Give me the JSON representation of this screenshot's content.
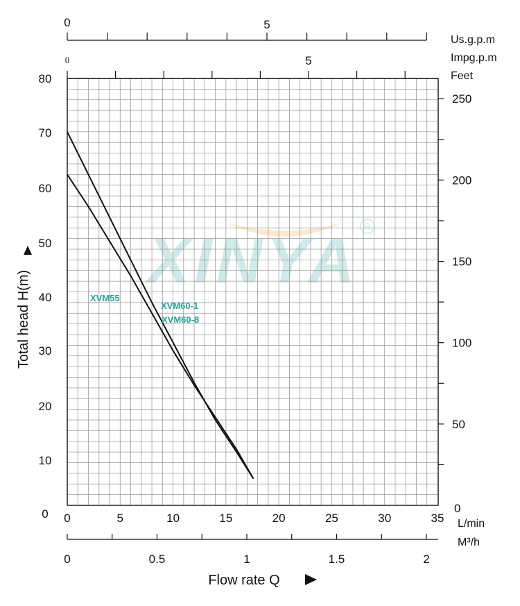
{
  "chart_data": {
    "type": "line",
    "title": "",
    "xlabel": "Flow rate Q",
    "ylabel": "Total head H(m)",
    "x_unit": "L/min",
    "xlim": [
      0,
      35
    ],
    "ylim": [
      0,
      80
    ],
    "grid": true,
    "x_ticks": [
      "0",
      "5",
      "10",
      "15",
      "20",
      "25",
      "30",
      "35"
    ],
    "y_ticks": [
      "0",
      "10",
      "20",
      "30",
      "40",
      "50",
      "60",
      "70",
      "80"
    ],
    "secondary_axes": {
      "feet": {
        "unit": "Feet",
        "ticks": [
          "0",
          "50",
          "100",
          "150",
          "200",
          "250"
        ]
      },
      "usgpm": {
        "unit": "Us.g.p.m",
        "ticks": [
          "0",
          "5"
        ]
      },
      "impgpm": {
        "unit": "Impg.p.m",
        "ticks": [
          "0",
          "5"
        ]
      },
      "m3h": {
        "unit": "M³/h",
        "ticks": [
          "0",
          "0.5",
          "1",
          "1.5",
          "2"
        ]
      }
    },
    "series": [
      {
        "name": "XVM55",
        "x": [
          0,
          2,
          4,
          6,
          8,
          10,
          12,
          14,
          16,
          17.6
        ],
        "y": [
          62,
          56,
          49.5,
          43,
          36,
          29,
          22.5,
          16.5,
          10.5,
          5
        ]
      },
      {
        "name": "XVM60-1\nXVM60-8",
        "x": [
          0,
          2,
          4,
          6,
          8,
          10,
          12,
          14,
          16,
          17.6
        ],
        "y": [
          70,
          62,
          54,
          46,
          38,
          30.5,
          23,
          16,
          10,
          5
        ]
      }
    ],
    "series_labels": [
      "XVM55",
      "XVM60-1",
      "XVM60-8"
    ],
    "watermark": "XINYA"
  }
}
